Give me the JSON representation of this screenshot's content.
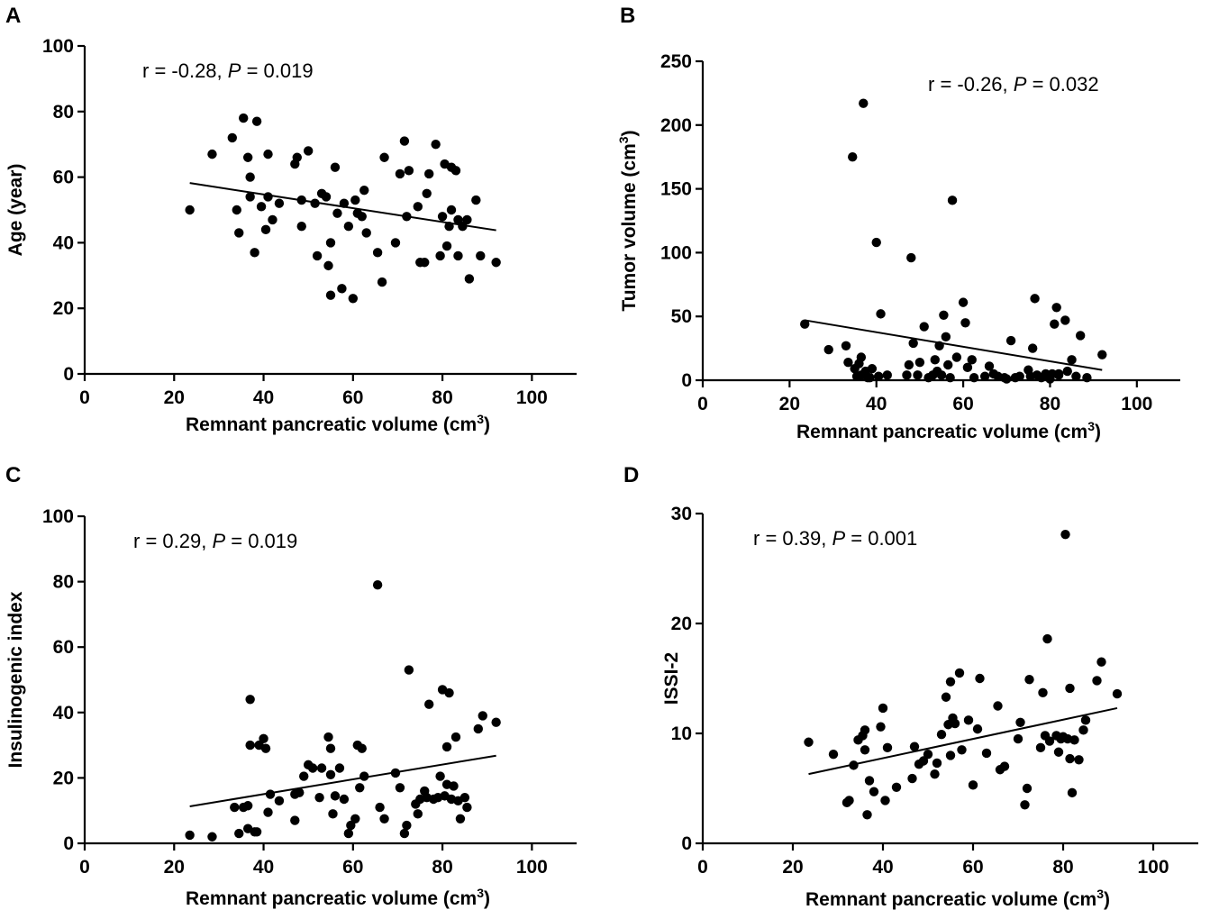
{
  "chart_data": [
    {
      "panel": "A",
      "type": "scatter",
      "xlabel": "Remnant pancreatic volume (cm",
      "xlabel_sup": "3",
      "xlabel_close": ")",
      "ylabel": "Age (year)",
      "xlim": [
        0,
        110
      ],
      "ylim": [
        0,
        100
      ],
      "xticks": [
        0,
        20,
        40,
        60,
        80,
        100
      ],
      "yticks": [
        0,
        20,
        40,
        60,
        80,
        100
      ],
      "annotation": {
        "prefix": "r = -0.28, ",
        "p_symbol": "P",
        "suffix": " = 0.019"
      },
      "fit_line": [
        [
          23.5,
          58.2
        ],
        [
          92,
          43.8
        ]
      ],
      "points": [
        [
          23.5,
          50
        ],
        [
          28.5,
          67
        ],
        [
          33,
          72
        ],
        [
          34,
          50
        ],
        [
          34.5,
          43
        ],
        [
          35.5,
          78
        ],
        [
          36.5,
          66
        ],
        [
          37,
          60
        ],
        [
          37,
          54
        ],
        [
          38,
          37
        ],
        [
          38.5,
          77
        ],
        [
          39.5,
          51
        ],
        [
          40.5,
          44
        ],
        [
          41,
          67
        ],
        [
          41,
          54
        ],
        [
          42,
          47
        ],
        [
          43.5,
          52
        ],
        [
          47,
          64
        ],
        [
          47.5,
          66
        ],
        [
          48.5,
          53
        ],
        [
          48.5,
          45
        ],
        [
          50,
          68
        ],
        [
          51.5,
          52
        ],
        [
          52,
          36
        ],
        [
          53,
          55
        ],
        [
          54,
          54
        ],
        [
          54.5,
          33
        ],
        [
          55,
          40
        ],
        [
          55,
          24
        ],
        [
          56,
          63
        ],
        [
          56.5,
          49
        ],
        [
          57.5,
          26
        ],
        [
          58,
          52
        ],
        [
          59,
          45
        ],
        [
          60,
          23
        ],
        [
          60.5,
          53
        ],
        [
          61,
          49
        ],
        [
          62,
          48
        ],
        [
          62.5,
          56
        ],
        [
          63,
          43
        ],
        [
          65.5,
          37
        ],
        [
          66.5,
          28
        ],
        [
          67,
          66
        ],
        [
          69.5,
          40
        ],
        [
          70.5,
          61
        ],
        [
          71.5,
          71
        ],
        [
          72,
          48
        ],
        [
          72.5,
          62
        ],
        [
          74.5,
          51
        ],
        [
          75,
          34
        ],
        [
          76,
          34
        ],
        [
          76.5,
          55
        ],
        [
          77,
          61
        ],
        [
          78.5,
          70
        ],
        [
          79.5,
          36
        ],
        [
          80,
          48
        ],
        [
          80.5,
          64
        ],
        [
          81,
          39
        ],
        [
          81.5,
          45
        ],
        [
          82,
          63
        ],
        [
          82,
          50
        ],
        [
          83,
          62
        ],
        [
          83.5,
          47
        ],
        [
          83.5,
          36
        ],
        [
          84.5,
          45
        ],
        [
          85.5,
          47
        ],
        [
          86,
          29
        ],
        [
          87.5,
          53
        ],
        [
          88.5,
          36
        ],
        [
          92,
          34
        ]
      ]
    },
    {
      "panel": "B",
      "type": "scatter",
      "xlabel": "Remnant pancreatic volume (cm",
      "xlabel_sup": "3",
      "xlabel_close": ")",
      "ylabel": "Tumor volume  (cm",
      "ylabel_sup": "3",
      "ylabel_close": ")",
      "xlim": [
        0,
        110
      ],
      "ylim": [
        0,
        250
      ],
      "xticks": [
        0,
        20,
        40,
        60,
        80,
        100
      ],
      "yticks": [
        0,
        50,
        100,
        150,
        200,
        250
      ],
      "annotation": {
        "prefix": "r = -0.26, ",
        "p_symbol": "P",
        "suffix": " = 0.032"
      },
      "fit_line": [
        [
          23.5,
          47
        ],
        [
          92,
          8
        ]
      ],
      "points": [
        [
          23.5,
          44
        ],
        [
          29,
          24
        ],
        [
          33,
          27
        ],
        [
          33.5,
          14
        ],
        [
          34.5,
          175
        ],
        [
          35,
          9
        ],
        [
          35.5,
          3
        ],
        [
          36,
          13
        ],
        [
          36.5,
          18
        ],
        [
          36.5,
          4
        ],
        [
          37,
          217
        ],
        [
          37.5,
          7
        ],
        [
          38,
          2
        ],
        [
          38.5,
          2
        ],
        [
          39,
          9
        ],
        [
          40,
          108
        ],
        [
          40.5,
          3
        ],
        [
          41,
          52
        ],
        [
          42.5,
          4
        ],
        [
          47,
          4
        ],
        [
          47.5,
          12
        ],
        [
          48,
          96
        ],
        [
          48.5,
          29
        ],
        [
          49.5,
          4
        ],
        [
          50,
          14
        ],
        [
          51,
          42
        ],
        [
          52,
          2
        ],
        [
          53,
          4
        ],
        [
          53.5,
          16
        ],
        [
          54,
          7
        ],
        [
          54.5,
          27
        ],
        [
          55,
          4
        ],
        [
          55.5,
          51
        ],
        [
          56,
          34
        ],
        [
          56.5,
          12
        ],
        [
          57,
          2
        ],
        [
          57.5,
          141
        ],
        [
          58.5,
          18
        ],
        [
          60,
          61
        ],
        [
          60.5,
          45
        ],
        [
          61,
          10
        ],
        [
          62,
          16
        ],
        [
          62.5,
          2
        ],
        [
          65,
          3
        ],
        [
          66,
          11
        ],
        [
          67,
          5
        ],
        [
          68,
          3
        ],
        [
          69.5,
          2
        ],
        [
          70,
          1
        ],
        [
          71,
          31
        ],
        [
          72,
          2
        ],
        [
          73,
          3
        ],
        [
          75,
          8
        ],
        [
          75.5,
          3
        ],
        [
          76,
          25
        ],
        [
          76.5,
          64
        ],
        [
          77,
          4
        ],
        [
          78,
          2
        ],
        [
          79,
          5
        ],
        [
          80,
          1
        ],
        [
          80.5,
          5
        ],
        [
          81,
          44
        ],
        [
          81.5,
          57
        ],
        [
          82,
          5
        ],
        [
          82,
          4
        ],
        [
          83.5,
          47
        ],
        [
          84,
          7
        ],
        [
          85,
          16
        ],
        [
          86,
          3
        ],
        [
          87,
          35
        ],
        [
          88.5,
          2
        ],
        [
          92,
          20
        ]
      ]
    },
    {
      "panel": "C",
      "type": "scatter",
      "xlabel": "Remnant pancreatic volume (cm",
      "xlabel_sup": "3",
      "xlabel_close": ")",
      "ylabel": "Insulinogenic index",
      "xlim": [
        0,
        110
      ],
      "ylim": [
        0,
        100
      ],
      "xticks": [
        0,
        20,
        40,
        60,
        80,
        100
      ],
      "yticks": [
        0,
        20,
        40,
        60,
        80,
        100
      ],
      "annotation": {
        "prefix": "r = 0.29, ",
        "p_symbol": "P",
        "suffix": " = 0.019"
      },
      "fit_line": [
        [
          23.5,
          11.3
        ],
        [
          92,
          26.8
        ]
      ],
      "points": [
        [
          23.5,
          2.5
        ],
        [
          28.5,
          2
        ],
        [
          33.5,
          11
        ],
        [
          34.5,
          3
        ],
        [
          35.5,
          11
        ],
        [
          36.5,
          11.5
        ],
        [
          36.5,
          4.5
        ],
        [
          37,
          30
        ],
        [
          37,
          44
        ],
        [
          38,
          3.5
        ],
        [
          38.5,
          3.5
        ],
        [
          39,
          30
        ],
        [
          40,
          32
        ],
        [
          40.5,
          29
        ],
        [
          41,
          9.5
        ],
        [
          41.5,
          15
        ],
        [
          43.5,
          13
        ],
        [
          47,
          7
        ],
        [
          47,
          15
        ],
        [
          48,
          15.5
        ],
        [
          49,
          20.5
        ],
        [
          50,
          24
        ],
        [
          51,
          23
        ],
        [
          52.5,
          14
        ],
        [
          53,
          23
        ],
        [
          54.5,
          32.5
        ],
        [
          55,
          29
        ],
        [
          55,
          21
        ],
        [
          55.5,
          9
        ],
        [
          56,
          14.5
        ],
        [
          57,
          23
        ],
        [
          58,
          13.5
        ],
        [
          59,
          3
        ],
        [
          59.5,
          5.5
        ],
        [
          60.5,
          7.5
        ],
        [
          61,
          30
        ],
        [
          61.5,
          17
        ],
        [
          62,
          29
        ],
        [
          62.5,
          20.5
        ],
        [
          65.5,
          79
        ],
        [
          66,
          11
        ],
        [
          67,
          7.5
        ],
        [
          69.5,
          21.5
        ],
        [
          70.5,
          17
        ],
        [
          71.5,
          3
        ],
        [
          72,
          5.5
        ],
        [
          72.5,
          53
        ],
        [
          74,
          12
        ],
        [
          74.5,
          9
        ],
        [
          75,
          13.5
        ],
        [
          76,
          16
        ],
        [
          76.5,
          14
        ],
        [
          77,
          42.5
        ],
        [
          78,
          13.5
        ],
        [
          79,
          14
        ],
        [
          79.5,
          20.5
        ],
        [
          80,
          47
        ],
        [
          80.5,
          14.5
        ],
        [
          81,
          18
        ],
        [
          81.5,
          46
        ],
        [
          81,
          29.5
        ],
        [
          82,
          13.5
        ],
        [
          82.5,
          17.5
        ],
        [
          83,
          32.5
        ],
        [
          83.5,
          13
        ],
        [
          84,
          7.5
        ],
        [
          85,
          14
        ],
        [
          85.5,
          11
        ],
        [
          88,
          35
        ],
        [
          89,
          39
        ],
        [
          92,
          37
        ]
      ]
    },
    {
      "panel": "D",
      "type": "scatter",
      "xlabel": "Remnant pancreatic volume (cm",
      "xlabel_sup": "3",
      "xlabel_close": ")",
      "ylabel": "ISSI-2",
      "xlim": [
        0,
        110
      ],
      "ylim": [
        0,
        30
      ],
      "xticks": [
        0,
        20,
        40,
        60,
        80,
        100
      ],
      "yticks": [
        0,
        10,
        20,
        30
      ],
      "annotation": {
        "prefix": "r = 0.39, ",
        "p_symbol": "P",
        "suffix": " = 0.001"
      },
      "fit_line": [
        [
          23.5,
          6.3
        ],
        [
          92,
          12.3
        ]
      ],
      "points": [
        [
          23.5,
          9.2
        ],
        [
          29,
          8.1
        ],
        [
          32,
          3.7
        ],
        [
          32.5,
          3.9
        ],
        [
          33.5,
          7.1
        ],
        [
          34.5,
          9.4
        ],
        [
          35.5,
          9.8
        ],
        [
          36,
          8.5
        ],
        [
          36,
          10.3
        ],
        [
          36.5,
          2.6
        ],
        [
          37,
          5.7
        ],
        [
          38,
          4.7
        ],
        [
          39.5,
          10.6
        ],
        [
          40,
          12.3
        ],
        [
          40.5,
          3.9
        ],
        [
          41,
          8.7
        ],
        [
          43,
          5.1
        ],
        [
          46.5,
          5.9
        ],
        [
          47,
          8.8
        ],
        [
          48,
          7.2
        ],
        [
          49,
          7.5
        ],
        [
          50,
          8.1
        ],
        [
          51.5,
          6.3
        ],
        [
          52,
          7.3
        ],
        [
          53,
          9.9
        ],
        [
          54,
          13.3
        ],
        [
          54.5,
          10.8
        ],
        [
          55,
          8
        ],
        [
          55,
          14.7
        ],
        [
          55.5,
          11.4
        ],
        [
          56,
          10.9
        ],
        [
          57,
          15.5
        ],
        [
          57.5,
          8.5
        ],
        [
          59,
          11.2
        ],
        [
          60,
          5.3
        ],
        [
          61,
          10.4
        ],
        [
          61.5,
          15
        ],
        [
          63,
          8.2
        ],
        [
          65.5,
          12.5
        ],
        [
          66,
          6.7
        ],
        [
          67,
          7
        ],
        [
          70,
          9.5
        ],
        [
          70.5,
          11
        ],
        [
          71.5,
          3.5
        ],
        [
          72,
          5
        ],
        [
          72.5,
          14.9
        ],
        [
          75,
          8.7
        ],
        [
          75.5,
          13.7
        ],
        [
          76,
          9.8
        ],
        [
          76.5,
          18.6
        ],
        [
          77,
          9.3
        ],
        [
          78.5,
          9.8
        ],
        [
          79,
          8.3
        ],
        [
          79.5,
          9.5
        ],
        [
          80,
          9.7
        ],
        [
          80.5,
          28.1
        ],
        [
          81,
          9.5
        ],
        [
          81.5,
          7.7
        ],
        [
          81.5,
          14.1
        ],
        [
          82,
          4.6
        ],
        [
          82.5,
          9.4
        ],
        [
          83.5,
          7.6
        ],
        [
          84.5,
          10.3
        ],
        [
          85,
          11.2
        ],
        [
          87.5,
          14.8
        ],
        [
          88.5,
          16.5
        ],
        [
          92,
          13.6
        ]
      ]
    }
  ]
}
